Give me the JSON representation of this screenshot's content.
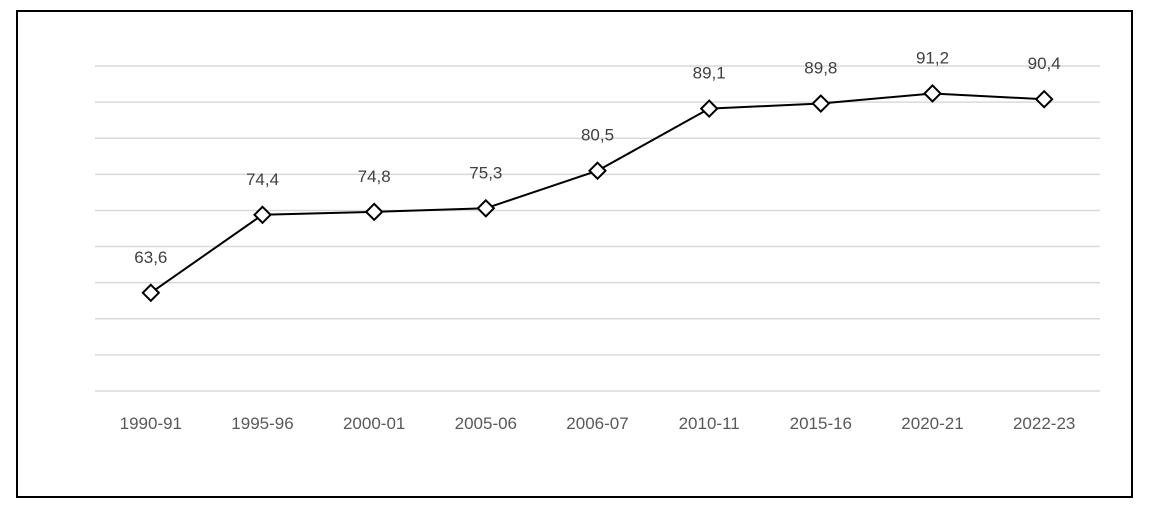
{
  "chart_data": {
    "type": "line",
    "title": "",
    "categories": [
      "1990-91",
      "1995-96",
      "2000-01",
      "2005-06",
      "2006-07",
      "2010-11",
      "2015-16",
      "2020-21",
      "2022-23"
    ],
    "series": [
      {
        "name": "",
        "values": [
          63.6,
          74.4,
          74.8,
          75.3,
          80.5,
          89.1,
          89.8,
          91.2,
          90.4
        ],
        "data_labels": [
          "63,6",
          "74,4",
          "74,8",
          "75,3",
          "80,5",
          "89,1",
          "89,8",
          "91,2",
          "90,4"
        ]
      }
    ],
    "xlabel": "",
    "ylabel": "",
    "ylim": [
      50,
      95
    ],
    "grid_step": 5,
    "gridlines": "horizontal",
    "y_axis_labels_visible": false,
    "legend": "none",
    "marker_shape": "open-diamond",
    "decimal_separator": ",",
    "colors": {
      "line": "#000000",
      "marker_fill": "#ffffff",
      "marker_stroke": "#000000",
      "gridline": "#d9d9d9",
      "data_label": "#404040",
      "axis_label": "#595959",
      "frame_border": "#000000",
      "background": "#ffffff"
    }
  }
}
